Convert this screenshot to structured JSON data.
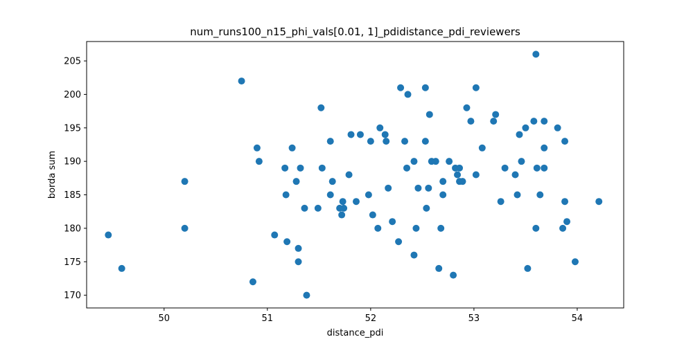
{
  "chart_data": {
    "type": "scatter",
    "title": "num_runs100_n15_phi_vals[0.01, 1]_pdidistance_pdi_reviewers",
    "xlabel": "distance_pdi",
    "ylabel": "borda sum",
    "xlim": [
      49.25,
      54.45
    ],
    "ylim": [
      168.1,
      207.9
    ],
    "x_ticks": [
      50,
      51,
      52,
      53,
      54
    ],
    "y_ticks": [
      170,
      175,
      180,
      185,
      190,
      195,
      200,
      205
    ],
    "grid": false,
    "legend": "none",
    "colors": {
      "point": "#1f77b4"
    },
    "points": [
      {
        "x": 49.46,
        "y": 179
      },
      {
        "x": 49.59,
        "y": 174
      },
      {
        "x": 50.2,
        "y": 187
      },
      {
        "x": 50.2,
        "y": 180
      },
      {
        "x": 50.75,
        "y": 202
      },
      {
        "x": 50.86,
        "y": 172
      },
      {
        "x": 50.9,
        "y": 192
      },
      {
        "x": 50.92,
        "y": 190
      },
      {
        "x": 51.07,
        "y": 179
      },
      {
        "x": 51.17,
        "y": 189
      },
      {
        "x": 51.18,
        "y": 185
      },
      {
        "x": 51.19,
        "y": 178
      },
      {
        "x": 51.24,
        "y": 192
      },
      {
        "x": 51.28,
        "y": 187
      },
      {
        "x": 51.3,
        "y": 177
      },
      {
        "x": 51.3,
        "y": 175
      },
      {
        "x": 51.32,
        "y": 189
      },
      {
        "x": 51.36,
        "y": 183
      },
      {
        "x": 51.38,
        "y": 170
      },
      {
        "x": 51.49,
        "y": 183
      },
      {
        "x": 51.52,
        "y": 198
      },
      {
        "x": 51.53,
        "y": 189
      },
      {
        "x": 51.61,
        "y": 193
      },
      {
        "x": 51.61,
        "y": 185
      },
      {
        "x": 51.63,
        "y": 187
      },
      {
        "x": 51.7,
        "y": 183
      },
      {
        "x": 51.72,
        "y": 182
      },
      {
        "x": 51.73,
        "y": 184
      },
      {
        "x": 51.74,
        "y": 183
      },
      {
        "x": 51.79,
        "y": 188
      },
      {
        "x": 51.81,
        "y": 194
      },
      {
        "x": 51.86,
        "y": 184
      },
      {
        "x": 51.9,
        "y": 194
      },
      {
        "x": 51.98,
        "y": 185
      },
      {
        "x": 52.0,
        "y": 193
      },
      {
        "x": 52.02,
        "y": 182
      },
      {
        "x": 52.07,
        "y": 180
      },
      {
        "x": 52.09,
        "y": 195
      },
      {
        "x": 52.14,
        "y": 194
      },
      {
        "x": 52.15,
        "y": 193
      },
      {
        "x": 52.17,
        "y": 186
      },
      {
        "x": 52.21,
        "y": 181
      },
      {
        "x": 52.27,
        "y": 178
      },
      {
        "x": 52.29,
        "y": 201
      },
      {
        "x": 52.33,
        "y": 193
      },
      {
        "x": 52.35,
        "y": 189
      },
      {
        "x": 52.36,
        "y": 200
      },
      {
        "x": 52.42,
        "y": 190
      },
      {
        "x": 52.42,
        "y": 176
      },
      {
        "x": 52.44,
        "y": 180
      },
      {
        "x": 52.46,
        "y": 186
      },
      {
        "x": 52.53,
        "y": 201
      },
      {
        "x": 52.53,
        "y": 193
      },
      {
        "x": 52.54,
        "y": 183
      },
      {
        "x": 52.56,
        "y": 186
      },
      {
        "x": 52.57,
        "y": 197
      },
      {
        "x": 52.59,
        "y": 190
      },
      {
        "x": 52.63,
        "y": 190
      },
      {
        "x": 52.66,
        "y": 174
      },
      {
        "x": 52.68,
        "y": 180
      },
      {
        "x": 52.7,
        "y": 187
      },
      {
        "x": 52.7,
        "y": 185
      },
      {
        "x": 52.76,
        "y": 190
      },
      {
        "x": 52.8,
        "y": 173
      },
      {
        "x": 52.82,
        "y": 189
      },
      {
        "x": 52.84,
        "y": 188
      },
      {
        "x": 52.86,
        "y": 189
      },
      {
        "x": 52.86,
        "y": 187
      },
      {
        "x": 52.89,
        "y": 187
      },
      {
        "x": 52.93,
        "y": 198
      },
      {
        "x": 52.97,
        "y": 196
      },
      {
        "x": 53.02,
        "y": 201
      },
      {
        "x": 53.02,
        "y": 188
      },
      {
        "x": 53.08,
        "y": 192
      },
      {
        "x": 53.19,
        "y": 196
      },
      {
        "x": 53.21,
        "y": 197
      },
      {
        "x": 53.26,
        "y": 184
      },
      {
        "x": 53.3,
        "y": 189
      },
      {
        "x": 53.4,
        "y": 188
      },
      {
        "x": 53.42,
        "y": 185
      },
      {
        "x": 53.44,
        "y": 194
      },
      {
        "x": 53.46,
        "y": 190
      },
      {
        "x": 53.5,
        "y": 195
      },
      {
        "x": 53.52,
        "y": 174
      },
      {
        "x": 53.58,
        "y": 196
      },
      {
        "x": 53.6,
        "y": 180
      },
      {
        "x": 53.6,
        "y": 206
      },
      {
        "x": 53.61,
        "y": 189
      },
      {
        "x": 53.64,
        "y": 185
      },
      {
        "x": 53.68,
        "y": 196
      },
      {
        "x": 53.68,
        "y": 192
      },
      {
        "x": 53.68,
        "y": 189
      },
      {
        "x": 53.81,
        "y": 195
      },
      {
        "x": 53.86,
        "y": 180
      },
      {
        "x": 53.88,
        "y": 193
      },
      {
        "x": 53.88,
        "y": 184
      },
      {
        "x": 53.9,
        "y": 181
      },
      {
        "x": 53.98,
        "y": 175
      },
      {
        "x": 54.21,
        "y": 184
      }
    ]
  }
}
